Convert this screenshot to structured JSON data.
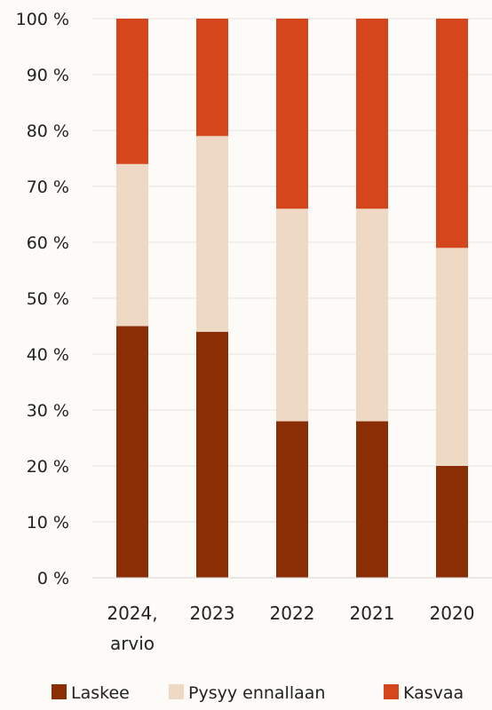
{
  "chart_data": {
    "type": "bar",
    "stacked": true,
    "categories": [
      "2024, arvio",
      "2023",
      "2022",
      "2021",
      "2020"
    ],
    "category_lines": [
      [
        "2024,",
        "arvio"
      ],
      [
        "2023"
      ],
      [
        "2022"
      ],
      [
        "2021"
      ],
      [
        "2020"
      ]
    ],
    "series": [
      {
        "name": "Laskee",
        "values": [
          45,
          44,
          28,
          28,
          20
        ],
        "color": "#8b2e06"
      },
      {
        "name": "Pysyy ennallaan",
        "values": [
          29,
          35,
          38,
          38,
          39
        ],
        "color": "#eed9c5"
      },
      {
        "name": "Kasvaa",
        "values": [
          26,
          21,
          34,
          34,
          41
        ],
        "color": "#d5461c"
      }
    ],
    "ylim": [
      0,
      100
    ],
    "yticks": [
      0,
      10,
      20,
      30,
      40,
      50,
      60,
      70,
      80,
      90,
      100
    ],
    "ytick_labels": [
      "0 %",
      "10 %",
      "20 %",
      "30 %",
      "40 %",
      "50 %",
      "60 %",
      "70 %",
      "80 %",
      "90 %",
      "100 %"
    ],
    "grid": true,
    "grid_color": "#e6e2de",
    "legend_position": "bottom",
    "title": "",
    "xlabel": "",
    "ylabel": ""
  }
}
